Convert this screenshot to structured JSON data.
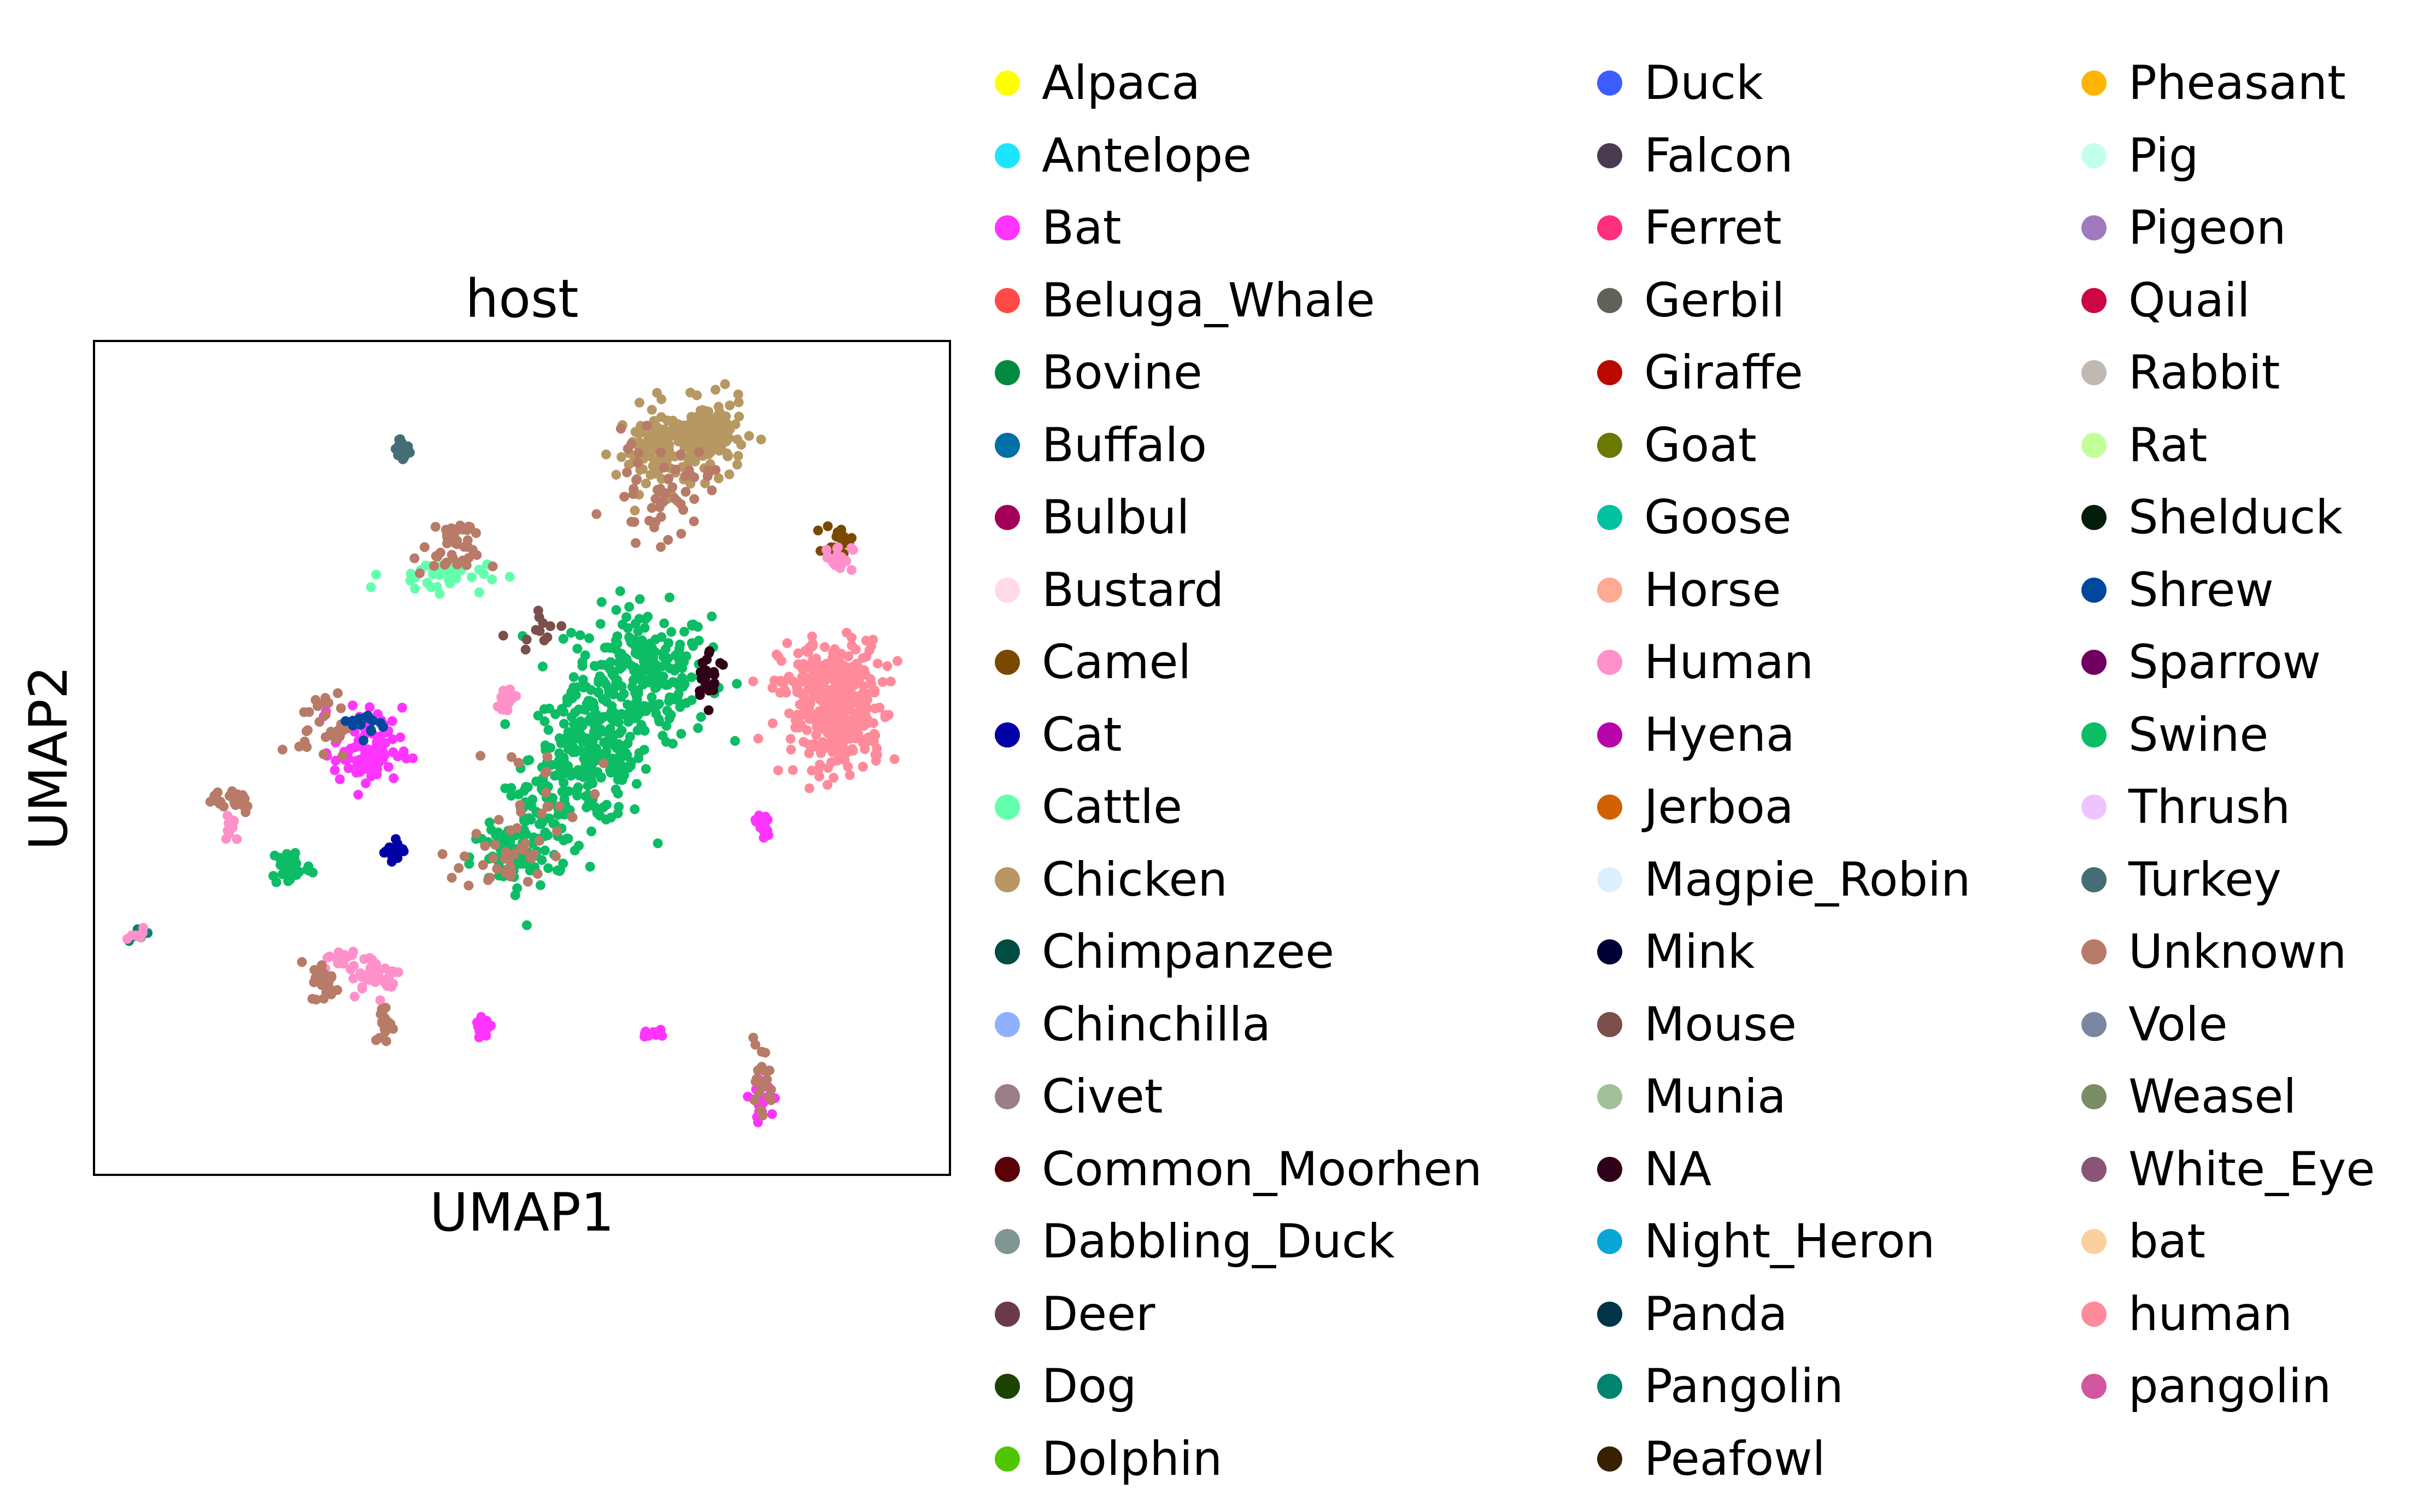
{
  "chart_data": {
    "type": "scatter",
    "title": "host",
    "xlabel": "UMAP1",
    "ylabel": "UMAP2",
    "grid": false,
    "ticks": false,
    "legend_placement": "right",
    "legend_columns": 3,
    "categories": [
      {
        "name": "Alpaca",
        "color": "#ffff00"
      },
      {
        "name": "Antelope",
        "color": "#1ce6ff"
      },
      {
        "name": "Bat",
        "color": "#ff34ff"
      },
      {
        "name": "Beluga_Whale",
        "color": "#ff4a46"
      },
      {
        "name": "Bovine",
        "color": "#008941"
      },
      {
        "name": "Buffalo",
        "color": "#006fa6"
      },
      {
        "name": "Bulbul",
        "color": "#a30059"
      },
      {
        "name": "Bustard",
        "color": "#ffdbe5"
      },
      {
        "name": "Camel",
        "color": "#7a4900"
      },
      {
        "name": "Cat",
        "color": "#0000a6"
      },
      {
        "name": "Cattle",
        "color": "#63ffac"
      },
      {
        "name": "Chicken",
        "color": "#b79762"
      },
      {
        "name": "Chimpanzee",
        "color": "#004d43"
      },
      {
        "name": "Chinchilla",
        "color": "#8fb0ff"
      },
      {
        "name": "Civet",
        "color": "#997d87"
      },
      {
        "name": "Common_Moorhen",
        "color": "#5a0007"
      },
      {
        "name": "Dabbling_Duck",
        "color": "#809693"
      },
      {
        "name": "Deer",
        "color": "#6a3a4c"
      },
      {
        "name": "Dog",
        "color": "#1b4400"
      },
      {
        "name": "Dolphin",
        "color": "#4fc601"
      },
      {
        "name": "Duck",
        "color": "#3b5dff"
      },
      {
        "name": "Falcon",
        "color": "#4a3b53"
      },
      {
        "name": "Ferret",
        "color": "#ff2f80"
      },
      {
        "name": "Gerbil",
        "color": "#61615a"
      },
      {
        "name": "Giraffe",
        "color": "#ba0900"
      },
      {
        "name": "Goat",
        "color": "#6b7900"
      },
      {
        "name": "Goose",
        "color": "#00c2a0"
      },
      {
        "name": "Horse",
        "color": "#ffaa92"
      },
      {
        "name": "Human",
        "color": "#ff90c9"
      },
      {
        "name": "Hyena",
        "color": "#b903aa"
      },
      {
        "name": "Jerboa",
        "color": "#d16100"
      },
      {
        "name": "Magpie_Robin",
        "color": "#ddefff"
      },
      {
        "name": "Mink",
        "color": "#000035"
      },
      {
        "name": "Mouse",
        "color": "#7b4f4b"
      },
      {
        "name": "Munia",
        "color": "#a1c299"
      },
      {
        "name": "NA",
        "color": "#300018"
      },
      {
        "name": "Night_Heron",
        "color": "#0aa6d8"
      },
      {
        "name": "Panda",
        "color": "#013349"
      },
      {
        "name": "Pangolin",
        "color": "#00846f"
      },
      {
        "name": "Peafowl",
        "color": "#372101"
      },
      {
        "name": "Pheasant",
        "color": "#ffb500"
      },
      {
        "name": "Pig",
        "color": "#c2ffed"
      },
      {
        "name": "Pigeon",
        "color": "#a079bf"
      },
      {
        "name": "Quail",
        "color": "#cc0744"
      },
      {
        "name": "Rabbit",
        "color": "#c0b9b2"
      },
      {
        "name": "Rat",
        "color": "#c2ff99"
      },
      {
        "name": "Shelduck",
        "color": "#001e09"
      },
      {
        "name": "Shrew",
        "color": "#00489c"
      },
      {
        "name": "Sparrow",
        "color": "#6f0062"
      },
      {
        "name": "Swine",
        "color": "#0cbd66"
      },
      {
        "name": "Thrush",
        "color": "#eec3ff"
      },
      {
        "name": "Turkey",
        "color": "#456d75"
      },
      {
        "name": "Unknown",
        "color": "#b77b68"
      },
      {
        "name": "Vole",
        "color": "#7a87a1"
      },
      {
        "name": "Weasel",
        "color": "#788d66"
      },
      {
        "name": "White_Eye",
        "color": "#885578"
      },
      {
        "name": "bat",
        "color": "#fad09f"
      },
      {
        "name": "human",
        "color": "#ff8a9a"
      },
      {
        "name": "pangolin",
        "color": "#d157a0"
      }
    ],
    "clusters": [
      {
        "cat": "Swine",
        "x": 0.64,
        "y": 0.6,
        "sx": 0.04,
        "sy": 0.04,
        "n": 260
      },
      {
        "cat": "Swine",
        "x": 0.58,
        "y": 0.5,
        "sx": 0.035,
        "sy": 0.04,
        "n": 220
      },
      {
        "cat": "Swine",
        "x": 0.52,
        "y": 0.42,
        "sx": 0.025,
        "sy": 0.03,
        "n": 80
      },
      {
        "cat": "Swine",
        "x": 0.48,
        "y": 0.38,
        "sx": 0.02,
        "sy": 0.02,
        "n": 50
      },
      {
        "cat": "Swine",
        "x": 0.23,
        "y": 0.37,
        "sx": 0.012,
        "sy": 0.012,
        "n": 40
      },
      {
        "cat": "NA",
        "x": 0.72,
        "y": 0.6,
        "sx": 0.01,
        "sy": 0.015,
        "n": 25
      },
      {
        "cat": "Unknown",
        "x": 0.48,
        "y": 0.38,
        "sx": 0.025,
        "sy": 0.02,
        "n": 35
      },
      {
        "cat": "Unknown",
        "x": 0.53,
        "y": 0.47,
        "sx": 0.03,
        "sy": 0.03,
        "n": 20
      },
      {
        "cat": "human",
        "x": 0.86,
        "y": 0.58,
        "sx": 0.03,
        "sy": 0.03,
        "n": 280
      },
      {
        "cat": "human",
        "x": 0.87,
        "y": 0.52,
        "sx": 0.025,
        "sy": 0.02,
        "n": 100
      },
      {
        "cat": "Chicken",
        "x": 0.67,
        "y": 0.87,
        "sx": 0.03,
        "sy": 0.025,
        "n": 150
      },
      {
        "cat": "Chicken",
        "x": 0.72,
        "y": 0.89,
        "sx": 0.02,
        "sy": 0.02,
        "n": 100
      },
      {
        "cat": "Unknown",
        "x": 0.66,
        "y": 0.82,
        "sx": 0.03,
        "sy": 0.03,
        "n": 50
      },
      {
        "cat": "Camel",
        "x": 0.87,
        "y": 0.76,
        "sx": 0.008,
        "sy": 0.01,
        "n": 20
      },
      {
        "cat": "Human",
        "x": 0.87,
        "y": 0.74,
        "sx": 0.008,
        "sy": 0.008,
        "n": 20
      },
      {
        "cat": "Turkey",
        "x": 0.36,
        "y": 0.87,
        "sx": 0.006,
        "sy": 0.008,
        "n": 22
      },
      {
        "cat": "Cattle",
        "x": 0.4,
        "y": 0.72,
        "sx": 0.03,
        "sy": 0.01,
        "n": 40
      },
      {
        "cat": "Unknown",
        "x": 0.41,
        "y": 0.74,
        "sx": 0.02,
        "sy": 0.01,
        "n": 25
      },
      {
        "cat": "Bat",
        "x": 0.32,
        "y": 0.51,
        "sx": 0.02,
        "sy": 0.025,
        "n": 90
      },
      {
        "cat": "Unknown",
        "x": 0.27,
        "y": 0.54,
        "sx": 0.015,
        "sy": 0.02,
        "n": 30
      },
      {
        "cat": "Cat",
        "x": 0.35,
        "y": 0.39,
        "sx": 0.006,
        "sy": 0.006,
        "n": 20
      },
      {
        "cat": "Shrew",
        "x": 0.32,
        "y": 0.54,
        "sx": 0.01,
        "sy": 0.008,
        "n": 15
      },
      {
        "cat": "Unknown",
        "x": 0.16,
        "y": 0.45,
        "sx": 0.015,
        "sy": 0.008,
        "n": 25
      },
      {
        "cat": "Human",
        "x": 0.16,
        "y": 0.42,
        "sx": 0.005,
        "sy": 0.01,
        "n": 12
      },
      {
        "cat": "Human",
        "x": 0.33,
        "y": 0.24,
        "sx": 0.015,
        "sy": 0.012,
        "n": 40
      },
      {
        "cat": "Human",
        "x": 0.29,
        "y": 0.26,
        "sx": 0.012,
        "sy": 0.006,
        "n": 20
      },
      {
        "cat": "Unknown",
        "x": 0.27,
        "y": 0.23,
        "sx": 0.008,
        "sy": 0.012,
        "n": 20
      },
      {
        "cat": "Unknown",
        "x": 0.34,
        "y": 0.18,
        "sx": 0.006,
        "sy": 0.012,
        "n": 20
      },
      {
        "cat": "Bat",
        "x": 0.455,
        "y": 0.18,
        "sx": 0.005,
        "sy": 0.007,
        "n": 22
      },
      {
        "cat": "Bat",
        "x": 0.65,
        "y": 0.17,
        "sx": 0.005,
        "sy": 0.004,
        "n": 14
      },
      {
        "cat": "Bat",
        "x": 0.78,
        "y": 0.09,
        "sx": 0.007,
        "sy": 0.01,
        "n": 25
      },
      {
        "cat": "Unknown",
        "x": 0.78,
        "y": 0.11,
        "sx": 0.007,
        "sy": 0.025,
        "n": 20
      },
      {
        "cat": "Bat",
        "x": 0.78,
        "y": 0.42,
        "sx": 0.005,
        "sy": 0.012,
        "n": 14
      },
      {
        "cat": "Human",
        "x": 0.48,
        "y": 0.57,
        "sx": 0.01,
        "sy": 0.008,
        "n": 18
      },
      {
        "cat": "Pangolin",
        "x": 0.05,
        "y": 0.29,
        "sx": 0.006,
        "sy": 0.004,
        "n": 8
      },
      {
        "cat": "Human",
        "x": 0.05,
        "y": 0.29,
        "sx": 0.006,
        "sy": 0.004,
        "n": 6
      },
      {
        "cat": "Unknown",
        "x": 0.42,
        "y": 0.77,
        "sx": 0.01,
        "sy": 0.01,
        "n": 15
      },
      {
        "cat": "Mouse",
        "x": 0.52,
        "y": 0.66,
        "sx": 0.015,
        "sy": 0.01,
        "n": 12
      }
    ]
  }
}
